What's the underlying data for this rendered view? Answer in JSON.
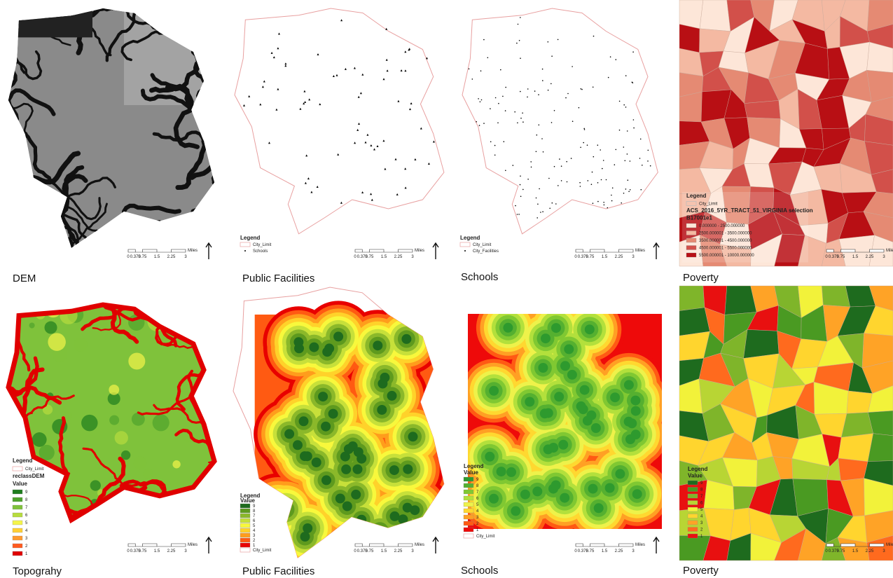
{
  "scale": {
    "ticks": [
      "0",
      "0.375",
      "0.75",
      "1.5",
      "2.25",
      "3"
    ],
    "unit": "Miles"
  },
  "panels": [
    {
      "caption": "DEM",
      "map": "dem"
    },
    {
      "caption": "Public Facilities",
      "map": "points",
      "point": "icon",
      "legend": {
        "title": "Legend",
        "items": [
          {
            "label": "City_Limit",
            "symbol": "outline",
            "color": "#e8a0a0"
          },
          {
            "label": "Schools",
            "symbol": "point",
            "color": "#000000"
          }
        ]
      }
    },
    {
      "caption": "Schools",
      "map": "points",
      "point": "dot",
      "legend": {
        "title": "Legend",
        "items": [
          {
            "label": "City_Limit",
            "symbol": "outline",
            "color": "#e8a0a0"
          },
          {
            "label": "City_Facilities",
            "symbol": "point",
            "color": "#000000"
          }
        ]
      }
    },
    {
      "caption": "Poverty",
      "map": "choropleth",
      "legend": {
        "title": "Legend",
        "items": [
          {
            "label": "City_Limit",
            "symbol": "outline",
            "color": "#bbbbbb"
          },
          {
            "label": "ACS_2016_5YR_TRACT_51_VIRGINIA selection",
            "symbol": "none"
          },
          {
            "label": "B17001e1",
            "symbol": "none"
          },
          {
            "label": "0.000000 - 2500.000000",
            "symbol": "fill",
            "color": "#fde6d8"
          },
          {
            "label": "2500.000001 - 3500.000000",
            "symbol": "fill",
            "color": "#f4b9a2"
          },
          {
            "label": "3500.000001 - 4500.000000",
            "symbol": "fill",
            "color": "#e58a73"
          },
          {
            "label": "4500.000001 - 5500.000000",
            "symbol": "fill",
            "color": "#d2504a"
          },
          {
            "label": "5500.000001 - 10000.000000",
            "symbol": "fill",
            "color": "#b80f14"
          }
        ]
      }
    },
    {
      "caption": "Topograhy",
      "map": "topo",
      "legend": {
        "title": "Legend",
        "items": [
          {
            "label": "City_Limit",
            "symbol": "outline",
            "color": "#e8a0a0"
          },
          {
            "label": "reclassDEM",
            "symbol": "none"
          },
          {
            "label": "Value",
            "symbol": "none"
          },
          {
            "label": "9",
            "symbol": "fill",
            "color": "#1e7d1e"
          },
          {
            "label": "8",
            "symbol": "fill",
            "color": "#4ea32c"
          },
          {
            "label": "7",
            "symbol": "fill",
            "color": "#7fc23b"
          },
          {
            "label": "6",
            "symbol": "fill",
            "color": "#b7dc3e"
          },
          {
            "label": "5",
            "symbol": "fill",
            "color": "#f4f44a"
          },
          {
            "label": "4",
            "symbol": "fill",
            "color": "#ffd034"
          },
          {
            "label": "3",
            "symbol": "fill",
            "color": "#ff9a2e"
          },
          {
            "label": "2",
            "symbol": "fill",
            "color": "#ff5a1f"
          },
          {
            "label": "1",
            "symbol": "fill",
            "color": "#e00000"
          }
        ]
      }
    },
    {
      "caption": "Public Facilities",
      "map": "rings-clip",
      "legend": {
        "title": "Legend",
        "items": [
          {
            "label": "Value",
            "symbol": "none"
          },
          {
            "label": "9",
            "symbol": "fill",
            "color": "#1e6b1e"
          },
          {
            "label": "8",
            "symbol": "fill",
            "color": "#5e9a1e"
          },
          {
            "label": "7",
            "symbol": "fill",
            "color": "#8bb82a"
          },
          {
            "label": "6",
            "symbol": "fill",
            "color": "#c7e03a"
          },
          {
            "label": "5",
            "symbol": "fill",
            "color": "#f8f83c"
          },
          {
            "label": "4",
            "symbol": "fill",
            "color": "#ffd22a"
          },
          {
            "label": "3",
            "symbol": "fill",
            "color": "#ff9d1c"
          },
          {
            "label": "2",
            "symbol": "fill",
            "color": "#ff5a12"
          },
          {
            "label": "1",
            "symbol": "fill",
            "color": "#e80000"
          },
          {
            "label": "City_Limit",
            "symbol": "outline",
            "color": "#e8a0a0"
          }
        ]
      }
    },
    {
      "caption": "Schools",
      "map": "rings",
      "legend": {
        "title": "Legend",
        "items": [
          {
            "label": "Value",
            "symbol": "none"
          },
          {
            "label": "9",
            "symbol": "fill",
            "color": "#2e9a2e"
          },
          {
            "label": "8",
            "symbol": "fill",
            "color": "#55b030"
          },
          {
            "label": "7",
            "symbol": "fill",
            "color": "#80c832"
          },
          {
            "label": "6",
            "symbol": "fill",
            "color": "#b3e03c"
          },
          {
            "label": "5",
            "symbol": "fill",
            "color": "#eef24a"
          },
          {
            "label": "4",
            "symbol": "fill",
            "color": "#ffd830"
          },
          {
            "label": "3",
            "symbol": "fill",
            "color": "#ffa024"
          },
          {
            "label": "2",
            "symbol": "fill",
            "color": "#ff5a14"
          },
          {
            "label": "1",
            "symbol": "fill",
            "color": "#ee0a0a"
          },
          {
            "label": "City_Limit",
            "symbol": "outline",
            "color": "#e8a0a0"
          }
        ]
      }
    },
    {
      "caption": "Poverty",
      "map": "choropleth-value",
      "legend": {
        "title": "Legend",
        "items": [
          {
            "label": "Value",
            "symbol": "none"
          },
          {
            "label": "9",
            "symbol": "fill",
            "color": "#1e6b1e"
          },
          {
            "label": "8",
            "symbol": "fill",
            "color": "#4a9a22"
          },
          {
            "label": "7",
            "symbol": "fill",
            "color": "#7fb52a"
          },
          {
            "label": "6",
            "symbol": "fill",
            "color": "#b8d534"
          },
          {
            "label": "5",
            "symbol": "fill",
            "color": "#f2f23a"
          },
          {
            "label": "4",
            "symbol": "fill",
            "color": "#ffd52e"
          },
          {
            "label": "3",
            "symbol": "fill",
            "color": "#ffa326"
          },
          {
            "label": "2",
            "symbol": "fill",
            "color": "#ff6a1e"
          },
          {
            "label": "1",
            "symbol": "fill",
            "color": "#e81010"
          }
        ]
      }
    }
  ]
}
